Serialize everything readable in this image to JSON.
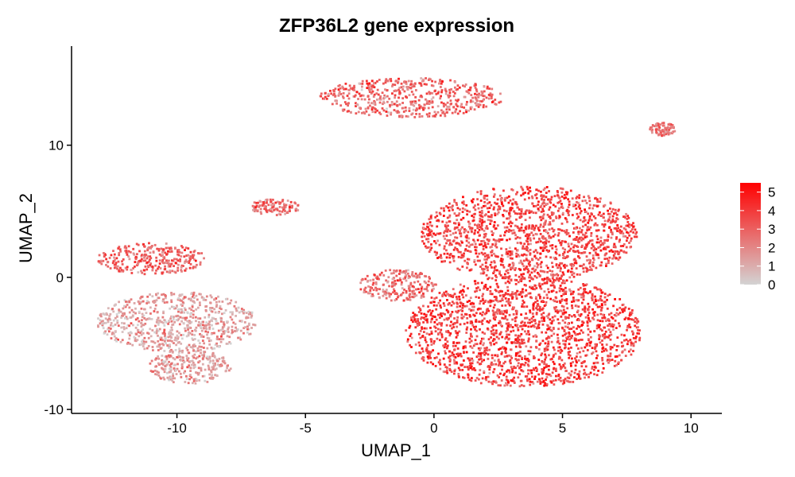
{
  "chart_data": {
    "type": "scatter",
    "title": "ZFP36L2 gene expression",
    "xlabel": "UMAP_1",
    "ylabel": "UMAP_2",
    "xlim": [
      -14.1,
      11.2
    ],
    "ylim": [
      -10.3,
      17.5
    ],
    "xticks": [
      -10,
      -5,
      0,
      5,
      10
    ],
    "yticks": [
      -10,
      0,
      10
    ],
    "grid": false,
    "legend": {
      "placement": "right",
      "title": "",
      "min": 0,
      "max": 5.5,
      "ticks": [
        0,
        1,
        2,
        3,
        4,
        5
      ],
      "color_low": "#D3D3D3",
      "color_high": "#FF0000"
    },
    "clusters": [
      {
        "region": "top-center",
        "cx": -0.9,
        "cy": 13.6,
        "rx": 3.6,
        "ry": 1.5,
        "mean": 2.8
      },
      {
        "region": "top-right-small",
        "cx": 8.9,
        "cy": 11.2,
        "rx": 0.5,
        "ry": 0.5,
        "mean": 2.5
      },
      {
        "region": "left-upper",
        "cx": -11.0,
        "cy": 1.4,
        "rx": 2.1,
        "ry": 1.2,
        "mean": 3.0
      },
      {
        "region": "left-lower",
        "cx": -10.0,
        "cy": -3.4,
        "rx": 3.1,
        "ry": 2.3,
        "mean": 1.3
      },
      {
        "region": "left-bottom-lobe",
        "cx": -9.5,
        "cy": -6.8,
        "rx": 1.6,
        "ry": 1.3,
        "mean": 1.6
      },
      {
        "region": "right-upper",
        "cx": 3.7,
        "cy": 3.3,
        "rx": 4.2,
        "ry": 3.6,
        "mean": 3.7
      },
      {
        "region": "right-lower",
        "cx": 3.5,
        "cy": -4.1,
        "rx": 4.6,
        "ry": 4.2,
        "mean": 3.9
      },
      {
        "region": "small-strand",
        "cx": -6.2,
        "cy": 5.3,
        "rx": 1.0,
        "ry": 0.6,
        "mean": 2.6
      },
      {
        "region": "middle-strand",
        "cx": -1.4,
        "cy": -0.6,
        "rx": 1.5,
        "ry": 1.2,
        "mean": 2.7
      }
    ],
    "colors": {
      "low": "#D3D3D3",
      "high": "#FF0000"
    }
  }
}
